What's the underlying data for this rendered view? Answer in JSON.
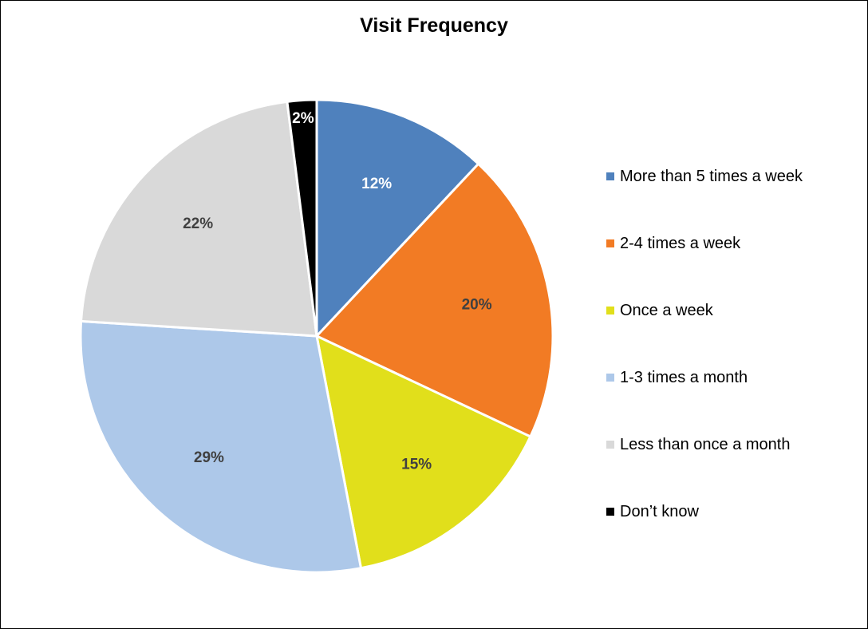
{
  "chart_data": {
    "type": "pie",
    "title": "Visit Frequency",
    "categories": [
      "More than 5 times a week",
      "2-4 times a week",
      "Once a week",
      "1-3 times a month",
      "Less than once a month",
      "Don’t know"
    ],
    "values": [
      12,
      20,
      15,
      29,
      22,
      2
    ],
    "data_labels": [
      "12%",
      "20%",
      "15%",
      "29%",
      "22%",
      "2%"
    ],
    "colors": [
      "#4f81bd",
      "#f27b24",
      "#e1df1b",
      "#adc8e9",
      "#d9d9d9",
      "#000000"
    ],
    "label_colors": [
      "#ffffff",
      "#404040",
      "#404040",
      "#404040",
      "#404040",
      "#ffffff"
    ],
    "legend_position": "right",
    "start_angle": "12 o'clock",
    "direction": "clockwise"
  }
}
